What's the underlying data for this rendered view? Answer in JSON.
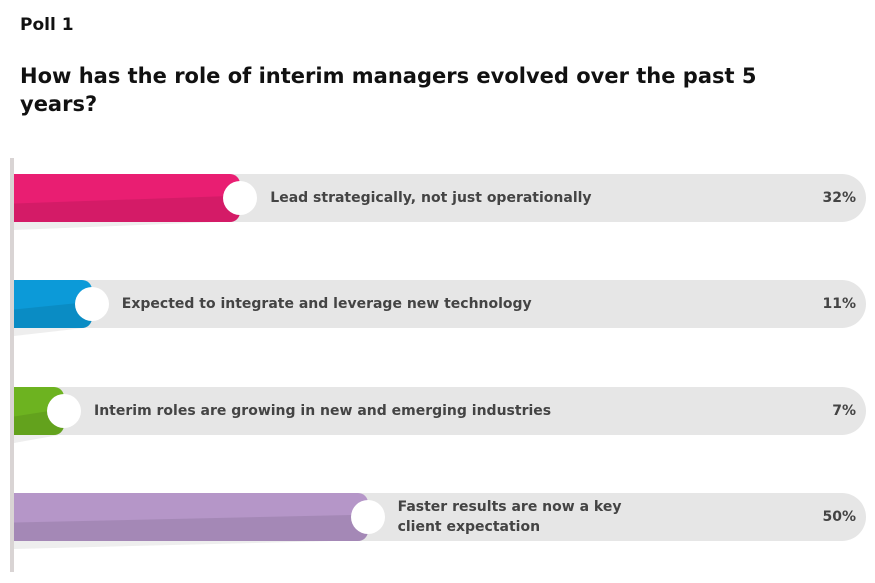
{
  "poll_label": "Poll 1",
  "chart_data": {
    "type": "bar",
    "title": "How has the role of interim managers evolved over the past 5 years?",
    "categories": [
      "Lead strategically, not just operationally",
      "Expected to integrate and leverage new technology",
      "Interim roles are growing in new and emerging industries",
      "Faster results are now a key client expectation"
    ],
    "values": [
      32,
      11,
      7,
      50
    ],
    "value_labels": [
      "32%",
      "11%",
      "7%",
      "50%"
    ],
    "colors": [
      "#e91e72",
      "#0c9ad8",
      "#6db320",
      "#b596c8"
    ],
    "xlim": [
      0,
      100
    ]
  }
}
